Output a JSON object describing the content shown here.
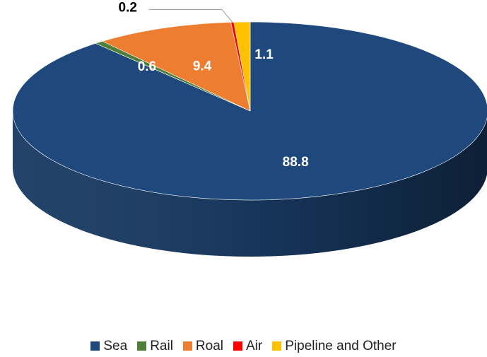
{
  "chart_data": {
    "type": "pie",
    "style": "3d-tilted",
    "title": "",
    "start_angle": "12 o'clock, clockwise",
    "categories": [
      "Sea",
      "Rail",
      "Roal",
      "Air",
      "Pipeline and Other"
    ],
    "values": [
      88.8,
      0.6,
      9.4,
      0.2,
      1.1
    ],
    "labels": [
      "88.8",
      "0.6",
      "9.4",
      "0.2",
      "1.1"
    ],
    "colors": [
      "#1f497d",
      "#4f7f3a",
      "#ed7d31",
      "#ff0000",
      "#ffc000"
    ],
    "legend_position": "bottom"
  }
}
